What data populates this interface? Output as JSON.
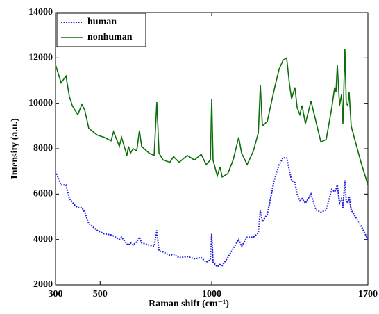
{
  "chart_data": {
    "type": "line",
    "xlabel": "Raman shift (cm⁻¹)",
    "ylabel": "Intensity (a.u.)",
    "x": [
      300,
      325,
      347,
      362,
      375,
      387,
      400,
      418,
      431,
      449,
      487,
      518,
      549,
      560,
      586,
      596,
      620,
      627,
      636,
      648,
      664,
      676,
      686,
      720,
      742,
      754,
      764,
      782,
      813,
      829,
      854,
      891,
      922,
      953,
      975,
      994,
      1000,
      1006,
      1025,
      1037,
      1047,
      1072,
      1096,
      1121,
      1134,
      1159,
      1187,
      1209,
      1218,
      1227,
      1249,
      1280,
      1302,
      1320,
      1336,
      1349,
      1358,
      1373,
      1383,
      1395,
      1405,
      1420,
      1445,
      1467,
      1489,
      1513,
      1538,
      1551,
      1557,
      1563,
      1573,
      1582,
      1588,
      1597,
      1603,
      1610,
      1616,
      1625,
      1644,
      1669,
      1700
    ],
    "series": [
      {
        "name": "human",
        "color": "#1f1fe0",
        "linestyle": "dotted",
        "values": [
          7000,
          6400,
          6400,
          5800,
          5650,
          5500,
          5400,
          5400,
          5200,
          4700,
          4400,
          4250,
          4200,
          4150,
          4000,
          4100,
          3800,
          3750,
          3850,
          3750,
          3900,
          4100,
          3850,
          3750,
          3700,
          4400,
          3500,
          3450,
          3300,
          3350,
          3200,
          3250,
          3150,
          3200,
          3000,
          3100,
          4250,
          3000,
          2800,
          2900,
          2850,
          3200,
          3600,
          4000,
          3700,
          4100,
          4100,
          4300,
          5300,
          4800,
          5100,
          6600,
          7300,
          7600,
          7600,
          7000,
          6600,
          6500,
          6000,
          5700,
          5800,
          5600,
          6000,
          5300,
          5200,
          5300,
          6200,
          6100,
          6200,
          6400,
          5600,
          5800,
          5400,
          6600,
          5700,
          5600,
          5900,
          5300,
          5000,
          4600,
          4000
        ]
      },
      {
        "name": "nonhuman",
        "color": "#0b6e0b",
        "linestyle": "solid",
        "values": [
          11700,
          10900,
          11200,
          10300,
          9900,
          9700,
          9500,
          9950,
          9700,
          8900,
          8600,
          8500,
          8350,
          8750,
          8100,
          8500,
          7700,
          8100,
          7800,
          8000,
          7900,
          8800,
          8100,
          7800,
          7700,
          10050,
          7800,
          7500,
          7400,
          7650,
          7400,
          7700,
          7500,
          7750,
          7300,
          7500,
          10200,
          7500,
          6800,
          7200,
          6750,
          6900,
          7500,
          8500,
          7800,
          7300,
          7900,
          8700,
          10800,
          9000,
          9200,
          10600,
          11500,
          11900,
          12000,
          10800,
          10200,
          10700,
          9800,
          9500,
          9900,
          9100,
          10100,
          9200,
          8300,
          8400,
          9800,
          10700,
          10500,
          11700,
          9900,
          10400,
          9100,
          12400,
          10000,
          9900,
          10500,
          9000,
          8300,
          7400,
          6400
        ]
      }
    ],
    "xlim": [
      300,
      1700
    ],
    "xticks": [
      300,
      500,
      1000,
      1700
    ],
    "ylim": [
      2000,
      14000
    ],
    "yticks": [
      2000,
      4000,
      6000,
      8000,
      10000,
      12000,
      14000
    ],
    "legend": "upper left"
  }
}
